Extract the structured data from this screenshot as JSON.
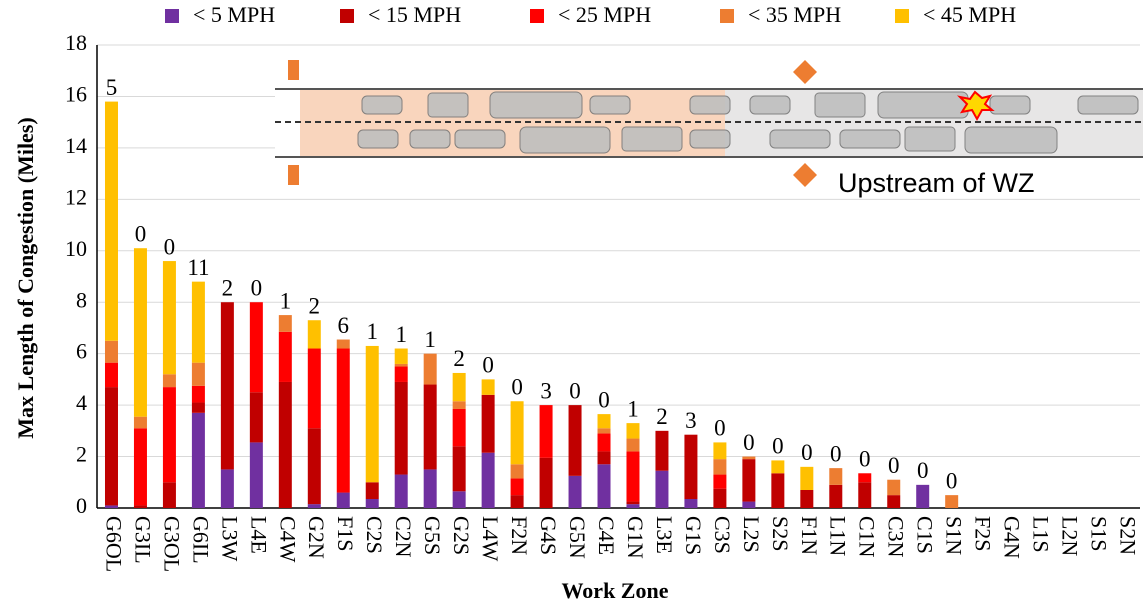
{
  "chart_data": {
    "type": "bar",
    "stacked": true,
    "y_label": "Max Length of Congestion (Miles)",
    "x_label": "Work Zone",
    "inset_annotation": "Upstream of WZ",
    "categories": [
      "G6OL",
      "G3IL",
      "G3OL",
      "G6IL",
      "L3W",
      "L4E",
      "C4W",
      "G2N",
      "F1S",
      "C2S",
      "C2N",
      "G5S",
      "G2S",
      "L4W",
      "F2N",
      "G4S",
      "G5N",
      "C4E",
      "G1N",
      "L3E",
      "G1S",
      "C3S",
      "L2S",
      "S2S",
      "F1N",
      "L1N",
      "C1N",
      "C3N",
      "C1S",
      "S1N",
      "F2S",
      "G4N",
      "L1S",
      "L2N",
      "S1S",
      "S2N"
    ],
    "series": [
      {
        "name": "< 5 MPH",
        "color": "#7030a0",
        "values": [
          0.1,
          0,
          0,
          3.7,
          1.5,
          2.55,
          0,
          0.15,
          0.6,
          0.35,
          1.3,
          1.5,
          0.65,
          2.15,
          0,
          0,
          1.25,
          1.7,
          0.15,
          1.45,
          0.35,
          0,
          0.25,
          0,
          0,
          0,
          0,
          0,
          0.9,
          0,
          0,
          0,
          0,
          0,
          0,
          0
        ]
      },
      {
        "name": "< 15 MPH",
        "color": "#c00000",
        "values": [
          4.6,
          0.1,
          1.0,
          0.4,
          6.5,
          1.95,
          4.9,
          2.95,
          0,
          0.65,
          3.6,
          3.3,
          1.75,
          2.25,
          0.5,
          1.95,
          2.75,
          0.5,
          0.1,
          1.55,
          2.5,
          0.75,
          1.65,
          1.35,
          0.7,
          0.9,
          1.0,
          0.5,
          0,
          0,
          0,
          0,
          0,
          0,
          0,
          0
        ]
      },
      {
        "name": "< 25 MPH",
        "color": "#ff0000",
        "values": [
          0.95,
          3.0,
          3.7,
          0.65,
          0,
          3.5,
          1.95,
          3.1,
          5.6,
          0,
          0.6,
          0,
          1.45,
          0,
          0.65,
          2.05,
          0,
          0.7,
          1.95,
          0,
          0,
          0.55,
          0,
          0,
          0,
          0,
          0.35,
          0,
          0,
          0,
          0,
          0,
          0,
          0,
          0,
          0
        ]
      },
      {
        "name": "< 35 MPH",
        "color": "#ed7d31",
        "values": [
          0.85,
          0.45,
          0.5,
          0.9,
          0,
          0,
          0.65,
          0,
          0.35,
          0,
          0.1,
          1.2,
          0.3,
          0,
          0.55,
          0,
          0,
          0.2,
          0.5,
          0,
          0,
          0.6,
          0.1,
          0,
          0,
          0.65,
          0,
          0.6,
          0,
          0.5,
          0,
          0,
          0,
          0,
          0,
          0
        ]
      },
      {
        "name": "< 45 MPH",
        "color": "#ffc000",
        "values": [
          9.3,
          6.55,
          4.4,
          3.15,
          0,
          0,
          0,
          1.1,
          0,
          5.3,
          0.6,
          0,
          1.1,
          0.6,
          2.45,
          0,
          0,
          0.55,
          0.6,
          0,
          0,
          0.65,
          0,
          0.5,
          0.9,
          0,
          0,
          0,
          0,
          0,
          0,
          0,
          0,
          0,
          0,
          0
        ]
      }
    ],
    "top_labels": [
      5,
      0,
      0,
      11,
      2,
      0,
      1,
      2,
      6,
      1,
      1,
      1,
      2,
      0,
      0,
      3,
      0,
      0,
      1,
      2,
      3,
      0,
      0,
      0,
      0,
      0,
      0,
      0,
      0,
      0,
      null,
      null,
      null,
      null,
      null,
      null
    ],
    "ylim": [
      0,
      18
    ],
    "yticks": [
      0,
      2,
      4,
      6,
      8,
      10,
      12,
      14,
      16,
      18
    ],
    "grid": true,
    "legend": "top"
  }
}
